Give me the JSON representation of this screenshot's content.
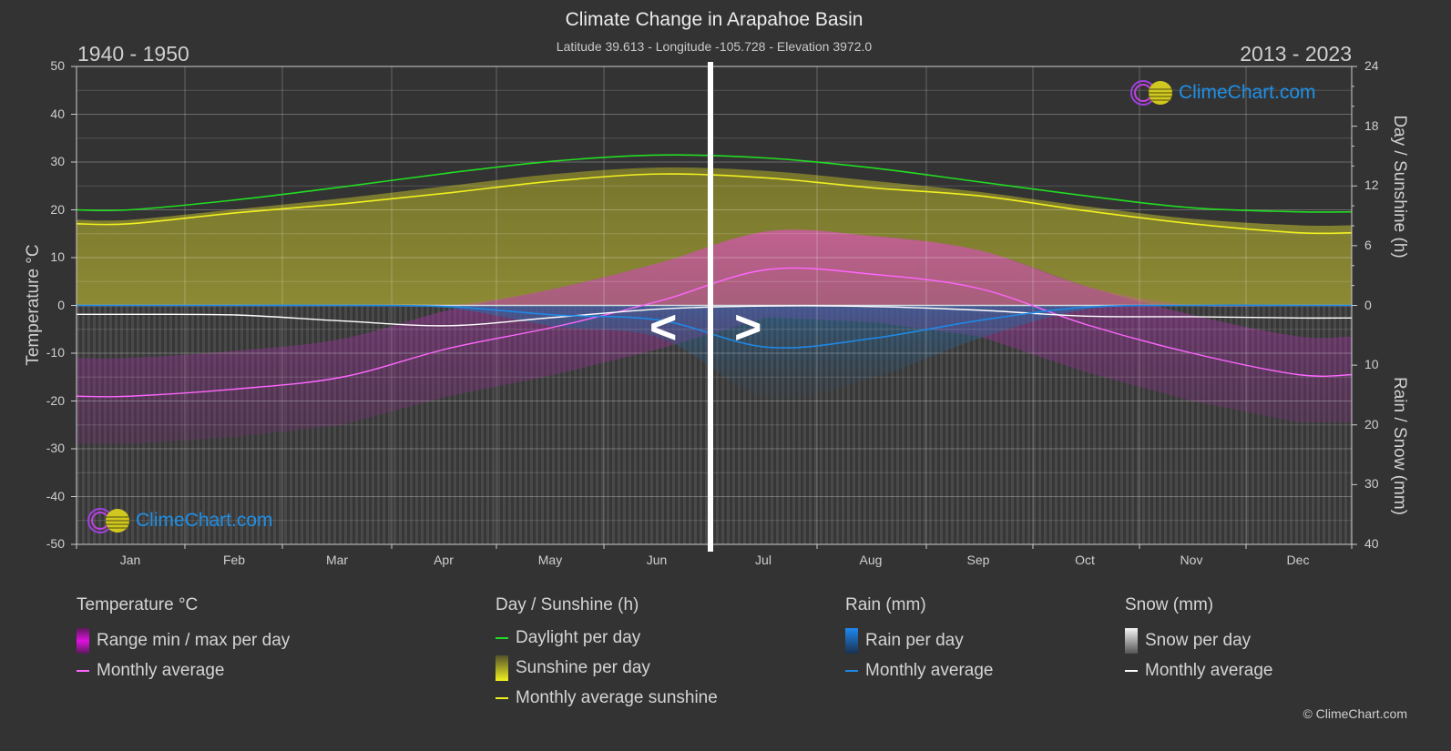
{
  "header": {
    "title": "Climate Change in Arapahoe Basin",
    "subtitle": "Latitude 39.613 - Longitude -105.728 - Elevation 3972.0",
    "period_left": "1940 - 1950",
    "period_right": "2013 - 2023"
  },
  "axes": {
    "left_title": "Temperature °C",
    "right_top_title": "Day / Sunshine (h)",
    "right_bottom_title": "Rain / Snow (mm)",
    "left_ticks": [
      "50",
      "40",
      "30",
      "20",
      "10",
      "0",
      "-10",
      "-20",
      "-30",
      "-40",
      "-50"
    ],
    "right_top_ticks": [
      "24",
      "18",
      "12",
      "6",
      "0"
    ],
    "right_bottom_ticks": [
      "10",
      "20",
      "30",
      "40"
    ],
    "months": [
      "Jan",
      "Feb",
      "Mar",
      "Apr",
      "May",
      "Jun",
      "Jul",
      "Aug",
      "Sep",
      "Oct",
      "Nov",
      "Dec"
    ]
  },
  "compare_nav": {
    "prev": "<",
    "next": ">"
  },
  "logo": {
    "text": "ClimeChart.com"
  },
  "legend": {
    "temperature": {
      "title": "Temperature °C",
      "range": "Range min / max per day",
      "avg": "Monthly average"
    },
    "sunshine": {
      "title": "Day / Sunshine (h)",
      "daylight": "Daylight per day",
      "sunshine": "Sunshine per day",
      "avg": "Monthly average sunshine"
    },
    "rain": {
      "title": "Rain (mm)",
      "per_day": "Rain per day",
      "avg": "Monthly average"
    },
    "snow": {
      "title": "Snow (mm)",
      "per_day": "Snow per day",
      "avg": "Monthly average"
    }
  },
  "copyright": "© ClimeChart.com",
  "colors": {
    "background": "#333333",
    "temp_avg": "#ff66ff",
    "temp_range": "#cc33cc",
    "daylight": "#22dd22",
    "sunshine_avg": "#f0f020",
    "sunshine_fill": "#8c8a30",
    "rain_avg": "#1e88e5",
    "snow_avg": "#ffffff",
    "logo_text": "#1e90e8"
  },
  "chart_data": {
    "type": "line",
    "title": "Climate Change in Arapahoe Basin",
    "subtitle": "Latitude 39.613 - Longitude -105.728 - Elevation 3972.0",
    "categories": [
      "Jan",
      "Feb",
      "Mar",
      "Apr",
      "May",
      "Jun",
      "Jul",
      "Aug",
      "Sep",
      "Oct",
      "Nov",
      "Dec"
    ],
    "xlabel": "",
    "ylabel": "Temperature °C",
    "ylim": [
      -50,
      50
    ],
    "y2_top": {
      "label": "Day / Sunshine (h)",
      "range": [
        0,
        24
      ]
    },
    "y2_bottom": {
      "label": "Rain / Snow (mm)",
      "range": [
        0,
        40
      ]
    },
    "grid": true,
    "legend_position": "bottom",
    "split_note": "Left half shows 1940 - 1950, right half shows 2013 - 2023",
    "series": [
      {
        "name": "Temperature monthly average (°C)",
        "axis": "left",
        "values": [
          -19,
          -17.5,
          -15,
          -9,
          -4.5,
          1,
          7.5,
          6.5,
          3.5,
          -4,
          -10,
          -14.5
        ]
      },
      {
        "name": "Daylight per day (h)",
        "axis": "right_top",
        "values": [
          9.6,
          10.6,
          11.9,
          13.3,
          14.5,
          15.1,
          14.8,
          13.8,
          12.4,
          11.0,
          9.8,
          9.4
        ]
      },
      {
        "name": "Monthly average sunshine (h)",
        "axis": "right_top",
        "values": [
          8.2,
          9.3,
          10.2,
          11.3,
          12.5,
          13.2,
          12.8,
          11.8,
          11.0,
          9.5,
          8.2,
          7.3
        ]
      },
      {
        "name": "Rain monthly average (mm)",
        "axis": "right_bottom",
        "values": [
          0,
          0,
          0,
          0.2,
          1.6,
          2.5,
          7.0,
          5.5,
          2.5,
          0.3,
          0,
          0
        ]
      },
      {
        "name": "Snow monthly average (mm)",
        "axis": "right_bottom",
        "values": [
          1.5,
          1.6,
          2.6,
          3.4,
          2.0,
          0.6,
          0.1,
          0.2,
          0.8,
          1.8,
          1.9,
          2.1
        ]
      }
    ]
  }
}
